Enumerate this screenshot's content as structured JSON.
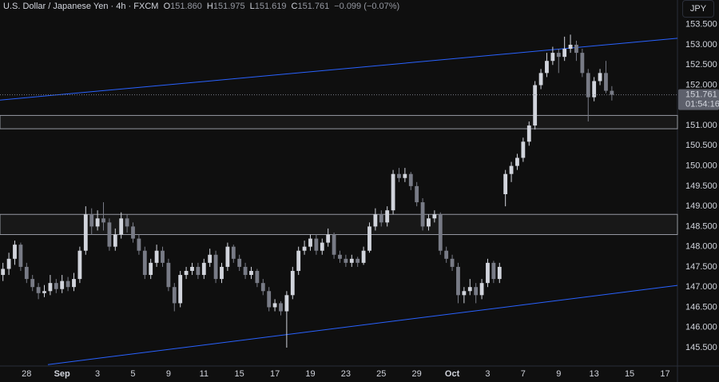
{
  "header": {
    "symbol": "U.S. Dollar / Japanese Yen · 4h · FXCM",
    "ohlc": [
      {
        "key": "O",
        "value": "151.860"
      },
      {
        "key": "H",
        "value": "151.975"
      },
      {
        "key": "L",
        "value": "151.619"
      },
      {
        "key": "C",
        "value": "151.761"
      }
    ],
    "change": "−0.099 (−0.07%)",
    "currency": "JPY"
  },
  "chart_data": {
    "type": "candlestick",
    "up_color": "#d1d4dc",
    "down_color": "#787b86",
    "grid": false,
    "candles": [
      [
        147.3,
        147.6,
        147.15,
        147.45
      ],
      [
        147.45,
        147.85,
        147.3,
        147.7
      ],
      [
        147.7,
        148.15,
        147.55,
        148.05
      ],
      [
        148.05,
        148.1,
        147.4,
        147.5
      ],
      [
        147.5,
        147.6,
        147.1,
        147.2
      ],
      [
        147.2,
        147.3,
        146.9,
        147.0
      ],
      [
        147.0,
        147.1,
        146.7,
        146.85
      ],
      [
        146.85,
        147.05,
        146.75,
        146.9
      ],
      [
        146.9,
        147.3,
        146.8,
        147.1
      ],
      [
        147.1,
        147.2,
        146.85,
        146.95
      ],
      [
        146.95,
        147.3,
        146.85,
        147.15
      ],
      [
        147.15,
        147.25,
        146.9,
        147.0
      ],
      [
        147.0,
        147.35,
        146.9,
        147.2
      ],
      [
        147.2,
        148.0,
        147.1,
        147.9
      ],
      [
        147.9,
        149.0,
        147.8,
        148.8
      ],
      [
        148.8,
        148.95,
        148.3,
        148.5
      ],
      [
        148.5,
        148.9,
        148.4,
        148.7
      ],
      [
        148.7,
        149.1,
        148.4,
        148.6
      ],
      [
        148.6,
        148.7,
        147.9,
        148.0
      ],
      [
        148.0,
        148.45,
        147.9,
        148.3
      ],
      [
        148.3,
        148.85,
        148.2,
        148.7
      ],
      [
        148.7,
        148.8,
        148.35,
        148.5
      ],
      [
        148.5,
        148.6,
        148.1,
        148.2
      ],
      [
        148.2,
        148.3,
        147.8,
        147.9
      ],
      [
        147.9,
        148.0,
        147.2,
        147.3
      ],
      [
        147.3,
        147.7,
        147.2,
        147.6
      ],
      [
        147.6,
        148.05,
        147.5,
        147.9
      ],
      [
        147.9,
        148.0,
        147.5,
        147.6
      ],
      [
        147.6,
        147.7,
        146.9,
        147.0
      ],
      [
        147.0,
        147.1,
        146.4,
        146.6
      ],
      [
        146.6,
        147.4,
        146.5,
        147.3
      ],
      [
        147.3,
        147.5,
        147.2,
        147.4
      ],
      [
        147.4,
        147.6,
        147.3,
        147.5
      ],
      [
        147.5,
        147.6,
        147.2,
        147.3
      ],
      [
        147.3,
        147.7,
        147.2,
        147.6
      ],
      [
        147.6,
        147.95,
        147.5,
        147.8
      ],
      [
        147.8,
        147.9,
        147.1,
        147.2
      ],
      [
        147.2,
        147.6,
        147.1,
        147.5
      ],
      [
        147.5,
        148.1,
        147.4,
        148.0
      ],
      [
        148.0,
        148.05,
        147.6,
        147.7
      ],
      [
        147.7,
        147.8,
        147.4,
        147.5
      ],
      [
        147.5,
        147.6,
        147.2,
        147.3
      ],
      [
        147.3,
        147.5,
        147.2,
        147.4
      ],
      [
        147.4,
        147.45,
        147.0,
        147.1
      ],
      [
        147.1,
        147.2,
        146.8,
        146.9
      ],
      [
        146.9,
        147.0,
        146.4,
        146.5
      ],
      [
        146.5,
        146.7,
        146.4,
        146.6
      ],
      [
        146.6,
        146.65,
        146.3,
        146.4
      ],
      [
        146.4,
        146.9,
        145.5,
        146.8
      ],
      [
        146.8,
        147.5,
        146.7,
        147.4
      ],
      [
        147.4,
        148.0,
        147.3,
        147.9
      ],
      [
        147.9,
        148.15,
        147.8,
        148.0
      ],
      [
        148.0,
        148.3,
        147.9,
        148.2
      ],
      [
        148.2,
        148.3,
        147.8,
        147.9
      ],
      [
        147.9,
        148.2,
        147.8,
        148.1
      ],
      [
        148.1,
        148.45,
        148.0,
        148.3
      ],
      [
        148.3,
        148.35,
        147.7,
        147.8
      ],
      [
        147.8,
        147.9,
        147.6,
        147.7
      ],
      [
        147.7,
        147.8,
        147.5,
        147.6
      ],
      [
        147.6,
        147.8,
        147.5,
        147.7
      ],
      [
        147.7,
        147.75,
        147.5,
        147.6
      ],
      [
        147.6,
        148.0,
        147.55,
        147.9
      ],
      [
        147.9,
        148.6,
        147.85,
        148.5
      ],
      [
        148.5,
        148.95,
        148.4,
        148.8
      ],
      [
        148.8,
        148.9,
        148.5,
        148.6
      ],
      [
        148.6,
        149.0,
        148.5,
        148.9
      ],
      [
        148.9,
        149.9,
        148.8,
        149.8
      ],
      [
        149.8,
        149.95,
        149.6,
        149.7
      ],
      [
        149.7,
        149.95,
        149.6,
        149.8
      ],
      [
        149.8,
        149.85,
        149.4,
        149.5
      ],
      [
        149.5,
        149.6,
        149.0,
        149.1
      ],
      [
        149.1,
        149.2,
        148.4,
        148.5
      ],
      [
        148.5,
        148.8,
        148.4,
        148.7
      ],
      [
        148.7,
        148.9,
        148.6,
        148.8
      ],
      [
        148.8,
        148.85,
        147.8,
        147.9
      ],
      [
        147.9,
        148.0,
        147.6,
        147.7
      ],
      [
        147.7,
        147.8,
        147.4,
        147.5
      ],
      [
        147.5,
        147.6,
        146.6,
        146.8
      ],
      [
        146.8,
        147.0,
        146.6,
        146.9
      ],
      [
        146.9,
        147.2,
        146.8,
        147.0
      ],
      [
        147.0,
        147.1,
        146.6,
        146.8
      ],
      [
        146.8,
        147.2,
        146.7,
        147.1
      ],
      [
        147.1,
        147.7,
        147.0,
        147.6
      ],
      [
        147.6,
        147.65,
        147.1,
        147.2
      ],
      [
        147.2,
        147.6,
        147.1,
        147.5
      ],
      [
        149.3,
        149.9,
        149.0,
        149.8
      ],
      [
        149.8,
        150.1,
        149.6,
        150.0
      ],
      [
        150.0,
        150.3,
        149.9,
        150.2
      ],
      [
        150.2,
        150.7,
        150.1,
        150.6
      ],
      [
        150.6,
        151.1,
        150.5,
        151.0
      ],
      [
        151.0,
        152.1,
        150.9,
        152.0
      ],
      [
        152.0,
        152.4,
        151.9,
        152.3
      ],
      [
        152.3,
        152.8,
        152.2,
        152.6
      ],
      [
        152.6,
        152.95,
        152.5,
        152.8
      ],
      [
        152.8,
        152.9,
        152.3,
        152.7
      ],
      [
        152.7,
        153.2,
        152.6,
        152.9
      ],
      [
        152.9,
        153.25,
        152.8,
        153.0
      ],
      [
        153.0,
        153.1,
        152.6,
        152.8
      ],
      [
        152.8,
        152.9,
        152.2,
        152.3
      ],
      [
        152.3,
        152.4,
        151.1,
        151.7
      ],
      [
        151.7,
        152.2,
        151.6,
        152.1
      ],
      [
        152.1,
        152.4,
        152.0,
        152.3
      ],
      [
        152.3,
        152.6,
        151.8,
        151.86
      ],
      [
        151.86,
        151.975,
        151.619,
        151.761
      ]
    ],
    "xlim": [
      -0.5,
      114.1
    ],
    "xticks": [
      {
        "value": 4,
        "label": "28"
      },
      {
        "value": 10,
        "label": "Sep"
      },
      {
        "value": 16,
        "label": "3"
      },
      {
        "value": 22,
        "label": "5"
      },
      {
        "value": 28,
        "label": "9"
      },
      {
        "value": 34,
        "label": "11"
      },
      {
        "value": 40,
        "label": "15"
      },
      {
        "value": 46,
        "label": "17"
      },
      {
        "value": 52,
        "label": "19"
      },
      {
        "value": 58,
        "label": "23"
      },
      {
        "value": 64,
        "label": "25"
      },
      {
        "value": 70,
        "label": "29"
      },
      {
        "value": 76,
        "label": "Oct"
      },
      {
        "value": 82,
        "label": "3"
      },
      {
        "value": 88,
        "label": "7"
      },
      {
        "value": 94,
        "label": "9"
      },
      {
        "value": 100,
        "label": "13"
      },
      {
        "value": 106,
        "label": "15"
      },
      {
        "value": 112,
        "label": "17"
      }
    ],
    "ylim": [
      145.045,
      154.108
    ],
    "yticks": [
      {
        "value": 145.5,
        "label": "145.500"
      },
      {
        "value": 146,
        "label": "146.000"
      },
      {
        "value": 146.5,
        "label": "146.500"
      },
      {
        "value": 147,
        "label": "147.000"
      },
      {
        "value": 147.5,
        "label": "147.500"
      },
      {
        "value": 148,
        "label": "148.000"
      },
      {
        "value": 148.5,
        "label": "148.500"
      },
      {
        "value": 149,
        "label": "149.000"
      },
      {
        "value": 149.5,
        "label": "149.500"
      },
      {
        "value": 150,
        "label": "150.000"
      },
      {
        "value": 150.5,
        "label": "150.500"
      },
      {
        "value": 151,
        "label": "151.000"
      },
      {
        "value": 151.5,
        "label": "151.500"
      },
      {
        "value": 152,
        "label": "152.000"
      },
      {
        "value": 152.5,
        "label": "152.500"
      },
      {
        "value": 153,
        "label": "153.000"
      },
      {
        "value": 153.5,
        "label": "153.500"
      }
    ],
    "zones": [
      {
        "y": [
          150.92,
          151.25
        ]
      },
      {
        "y": [
          148.3,
          148.8
        ]
      }
    ],
    "trendlines": [
      {
        "x": [
          -0.5,
          114.1
        ],
        "y": [
          151.63,
          153.16
        ],
        "color": "#2962ff"
      },
      {
        "x": [
          7.6,
          114.1
        ],
        "y": [
          145.08,
          147.04
        ],
        "color": "#2962ff"
      }
    ],
    "last_price": {
      "value": 151.761,
      "label": "151.761",
      "countdown": "01:54:16"
    }
  }
}
